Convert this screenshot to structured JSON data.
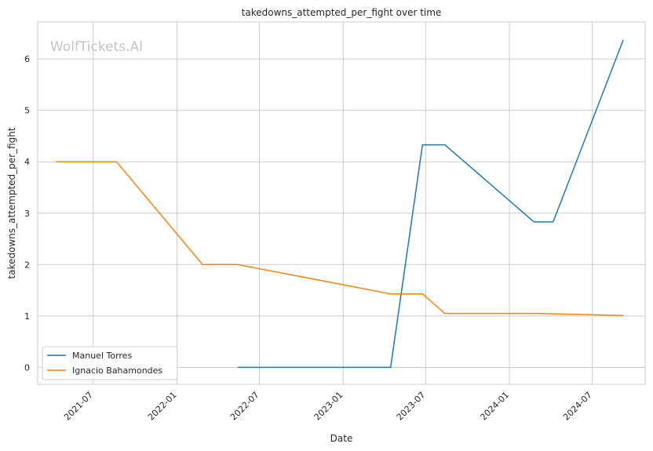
{
  "chart_data": {
    "type": "line",
    "title": "takedowns_attempted_per_fight over time",
    "xlabel": "Date",
    "ylabel": "takedowns_attempted_per_fight",
    "watermark": "WolfTickets.AI",
    "x_range": [
      "2021-03-01",
      "2024-10-25"
    ],
    "y_range": [
      -0.33,
      6.72
    ],
    "x_ticks": [
      {
        "date": "2021-07-01",
        "label": "2021-07"
      },
      {
        "date": "2022-01-01",
        "label": "2022-01"
      },
      {
        "date": "2022-07-01",
        "label": "2022-07"
      },
      {
        "date": "2023-01-01",
        "label": "2023-01"
      },
      {
        "date": "2023-07-01",
        "label": "2023-07"
      },
      {
        "date": "2024-01-01",
        "label": "2024-01"
      },
      {
        "date": "2024-07-01",
        "label": "2024-07"
      }
    ],
    "y_ticks": [
      0,
      1,
      2,
      3,
      4,
      5,
      6
    ],
    "grid": true,
    "legend_position": "lower-left",
    "series": [
      {
        "name": "Manuel Torres",
        "color": "#1f77b4",
        "points": [
          {
            "x": "2022-05-14",
            "y": 0
          },
          {
            "x": "2023-04-15",
            "y": 0
          },
          {
            "x": "2023-06-24",
            "y": 4.33
          },
          {
            "x": "2023-08-12",
            "y": 4.33
          },
          {
            "x": "2024-02-24",
            "y": 2.83
          },
          {
            "x": "2024-04-06",
            "y": 2.83
          },
          {
            "x": "2024-09-07",
            "y": 6.37
          }
        ]
      },
      {
        "name": "Ignacio Bahamondes",
        "color": "#ff7f0e",
        "points": [
          {
            "x": "2021-04-10",
            "y": 4.0
          },
          {
            "x": "2021-08-21",
            "y": 4.0
          },
          {
            "x": "2022-02-26",
            "y": 2.0
          },
          {
            "x": "2022-05-14",
            "y": 2.0
          },
          {
            "x": "2023-04-15",
            "y": 1.43
          },
          {
            "x": "2023-06-24",
            "y": 1.43
          },
          {
            "x": "2023-08-12",
            "y": 1.05
          },
          {
            "x": "2024-03-02",
            "y": 1.05
          },
          {
            "x": "2024-09-07",
            "y": 1.01
          }
        ]
      }
    ]
  }
}
